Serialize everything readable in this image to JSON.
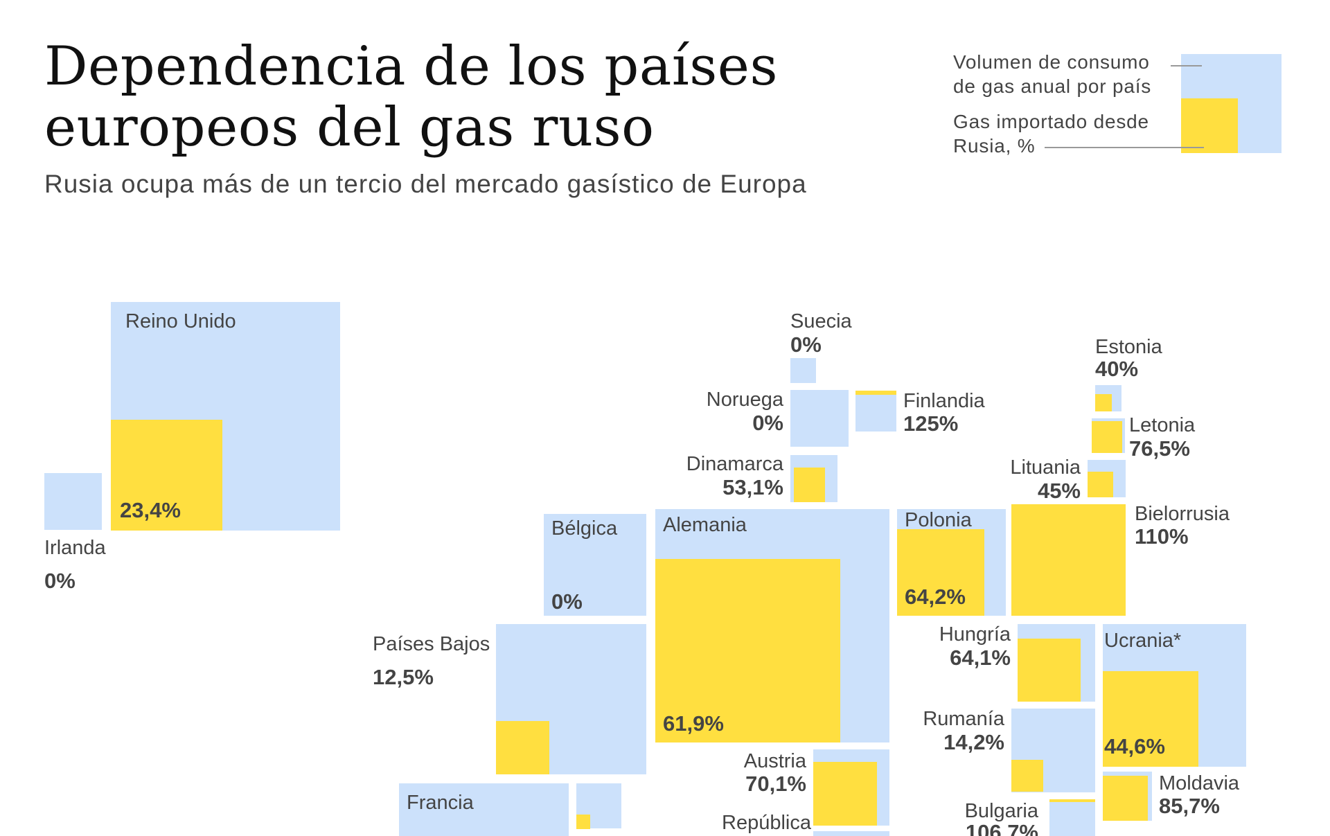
{
  "title_line1": "Dependencia de los países",
  "title_line2": "europeos del gas ruso",
  "subtitle": "Rusia ocupa más de un tercio del mercado gasístico de Europa",
  "legend": {
    "volume_line1": "Volumen de consumo",
    "volume_line2": "de gas anual por país",
    "imported_line1": "Gas importado desde",
    "imported_line2": "Rusia, %"
  },
  "colors": {
    "consumption": "#cce1fb",
    "russian_gas": "#ffdf40",
    "text": "#444444"
  },
  "chart_data": {
    "type": "table",
    "title": "Dependencia de los países europeos del gas ruso",
    "subtitle": "Rusia ocupa más de un tercio del mercado gasístico de Europa",
    "countries": [
      {
        "name": "Reino Unido",
        "label": "23,4%",
        "value": 23.4
      },
      {
        "name": "Irlanda",
        "label": "0%",
        "value": 0
      },
      {
        "name": "Suecia",
        "label": "0%",
        "value": 0
      },
      {
        "name": "Noruega",
        "label": "0%",
        "value": 0
      },
      {
        "name": "Finlandia",
        "label": "125%",
        "value": 125
      },
      {
        "name": "Dinamarca",
        "label": "53,1%",
        "value": 53.1
      },
      {
        "name": "Estonia",
        "label": "40%",
        "value": 40
      },
      {
        "name": "Letonia",
        "label": "76,5%",
        "value": 76.5
      },
      {
        "name": "Lituania",
        "label": "45%",
        "value": 45
      },
      {
        "name": "Bielorrusia",
        "label": "110%",
        "value": 110
      },
      {
        "name": "Bélgica",
        "label": "0%",
        "value": 0
      },
      {
        "name": "Alemania",
        "label": "61,9%",
        "value": 61.9
      },
      {
        "name": "Polonia",
        "label": "64,2%",
        "value": 64.2
      },
      {
        "name": "Países Bajos",
        "label": "12,5%",
        "value": 12.5
      },
      {
        "name": "Hungría",
        "label": "64,1%",
        "value": 64.1
      },
      {
        "name": "Ucrania*",
        "label": "44,6%",
        "value": 44.6
      },
      {
        "name": "Austria",
        "label": "70,1%",
        "value": 70.1
      },
      {
        "name": "Rumanía",
        "label": "14,2%",
        "value": 14.2
      },
      {
        "name": "Moldavia",
        "label": "85,7%",
        "value": 85.7
      },
      {
        "name": "Bulgaria",
        "label": "106,7%",
        "value": 106.7
      },
      {
        "name": "Francia",
        "label": "",
        "value": null
      },
      {
        "name": "",
        "label": "",
        "value": null
      },
      {
        "name": "República",
        "label": "",
        "value": null
      }
    ]
  }
}
